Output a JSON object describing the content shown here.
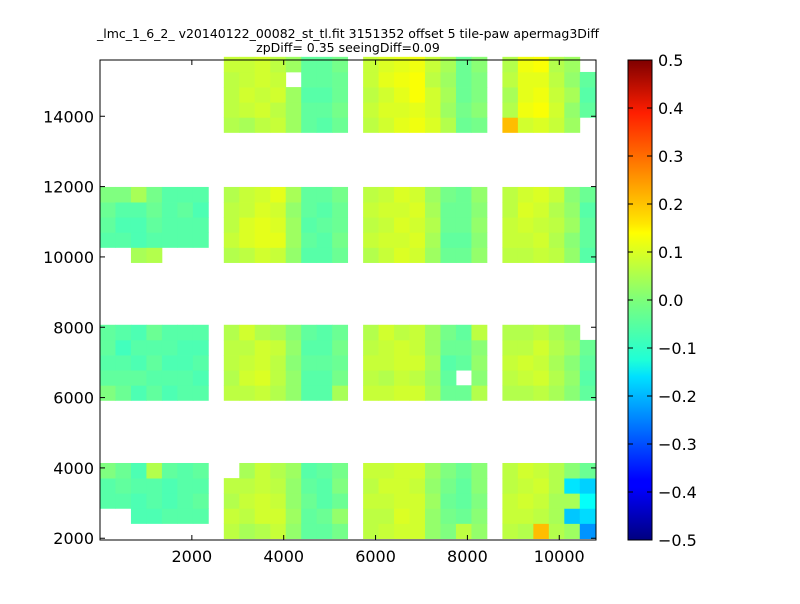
{
  "chart_data": {
    "type": "heatmap",
    "title_line1": "_lmc_1_6_2_ v20140122_00082_st_tl.fit 3151352 offset 5 tile-paw apermag3Diff",
    "title_line2": "zpDiff= 0.35 seeingDiff=0.09",
    "xlabel": "",
    "ylabel": "",
    "xlim": [
      0,
      10800
    ],
    "ylim": [
      1950,
      15600
    ],
    "x_ticks": [
      2000,
      4000,
      6000,
      8000,
      10000
    ],
    "x_tick_labels": [
      "2000",
      "4000",
      "6000",
      "8000",
      "10000"
    ],
    "y_ticks": [
      2000,
      4000,
      6000,
      8000,
      10000,
      12000,
      14000
    ],
    "y_tick_labels": [
      "2000",
      "4000",
      "6000",
      "8000",
      "10000",
      "12000",
      "14000"
    ],
    "colorbar": {
      "colormap": "jet",
      "vmin": -0.5,
      "vmax": 0.5,
      "ticks": [
        0.5,
        0.4,
        0.3,
        0.2,
        0.1,
        0.0,
        -0.1,
        -0.2,
        -0.3,
        -0.4,
        -0.5
      ],
      "tick_labels": [
        "0.5",
        "0.4",
        "0.3",
        "0.2",
        "0.1",
        "0.0",
        "−0.1",
        "−0.2",
        "−0.3",
        "−0.4",
        "−0.5"
      ]
    },
    "cell_size": {
      "dx": 337,
      "dy": 430
    },
    "column_x": [
      [
        0,
        337,
        674,
        1011,
        1348,
        1685,
        2022
      ],
      [
        2696,
        3033,
        3370,
        3707,
        4044,
        4381,
        4718,
        5055
      ],
      [
        5729,
        6066,
        6403,
        6740,
        7077,
        7414,
        7751,
        8088
      ],
      [
        8762,
        9099,
        9436,
        9773,
        10110,
        10447
      ]
    ],
    "row_y": [
      [
        1990,
        2420,
        2850,
        3280,
        3710
      ],
      [
        5920,
        6350,
        6780,
        7210,
        7640
      ],
      [
        9840,
        10270,
        10700,
        11130,
        11560
      ],
      [
        13540,
        13970,
        14400,
        14830,
        15260
      ]
    ],
    "cell_values": [
      [
        [
          [
            null,
            null,
            -0.04,
            -0.04,
            0.0
          ],
          [
            0.0,
            -0.03,
            -0.04,
            -0.03,
            -0.03
          ],
          [
            null,
            -0.04,
            -0.03,
            -0.02,
            0.0
          ]
        ],
        [
          [
            null,
            null,
            -0.04,
            -0.03,
            -0.02
          ],
          [
            -0.02,
            -0.03,
            -0.04,
            -0.06,
            -0.04
          ],
          [
            null,
            -0.04,
            -0.05,
            -0.04,
            0.0
          ]
        ],
        [
          [
            null,
            -0.05,
            -0.05,
            -0.04,
            -0.05
          ],
          [
            -0.05,
            -0.03,
            -0.05,
            -0.04,
            -0.05
          ],
          [
            0.04,
            -0.05,
            -0.05,
            -0.04,
            0.04
          ]
        ],
        [
          [
            null,
            -0.05,
            -0.04,
            -0.04,
            0.05
          ],
          [
            -0.03,
            -0.04,
            -0.03,
            -0.04,
            -0.02
          ],
          [
            0.05,
            -0.04,
            -0.03,
            -0.02,
            -0.01
          ]
        ],
        [
          [
            null,
            -0.04,
            -0.05,
            -0.05,
            -0.03
          ],
          [
            -0.05,
            -0.04,
            -0.05,
            -0.04,
            -0.04
          ],
          [
            null,
            -0.04,
            -0.04,
            -0.04,
            -0.04
          ]
        ],
        [
          [
            null,
            -0.04,
            -0.04,
            -0.04,
            -0.04
          ],
          [
            -0.04,
            -0.04,
            -0.05,
            -0.05,
            -0.04
          ],
          [
            null,
            -0.04,
            -0.04,
            -0.03,
            -0.04
          ]
        ],
        [
          [
            null,
            -0.04,
            -0.03,
            -0.04,
            -0.03
          ],
          [
            -0.04,
            -0.05,
            -0.04,
            -0.05,
            -0.04
          ],
          [
            null,
            -0.04,
            -0.04,
            -0.05,
            -0.04
          ]
        ]
      ],
      [
        [
          [
            0.06,
            0.07,
            0.05,
            0.06,
            null
          ],
          [
            0.06,
            0.05,
            0.06,
            0.06,
            0.05
          ],
          [
            0.05,
            0.07,
            0.06,
            0.06,
            0.05
          ],
          [
            0.05,
            0.06,
            0.06,
            0.06,
            0.07
          ]
        ],
        [
          [
            0.04,
            0.06,
            0.07,
            0.06,
            0.04
          ],
          [
            0.06,
            0.08,
            0.07,
            0.06,
            0.08
          ],
          [
            0.06,
            0.09,
            0.09,
            0.07,
            0.07
          ],
          [
            0.04,
            0.07,
            0.08,
            0.07,
            0.07
          ]
        ],
        [
          [
            0.05,
            0.08,
            0.08,
            0.07,
            0.07
          ],
          [
            0.07,
            0.09,
            0.08,
            0.08,
            0.05
          ],
          [
            0.08,
            0.1,
            0.1,
            0.09,
            0.08
          ],
          [
            0.06,
            0.08,
            0.07,
            0.08,
            0.08
          ]
        ],
        [
          [
            0.07,
            0.08,
            0.07,
            0.06,
            0.05
          ],
          [
            0.05,
            0.06,
            0.06,
            0.07,
            0.04
          ],
          [
            0.07,
            0.1,
            0.09,
            0.08,
            0.1
          ],
          [
            0.07,
            0.06,
            0.08,
            0.07,
            0.06
          ]
        ],
        [
          [
            0.02,
            0.03,
            0.02,
            0.02,
            0.03
          ],
          [
            0.02,
            0.02,
            0.01,
            0.02,
            0.01
          ],
          [
            0.02,
            0.03,
            0.03,
            0.02,
            0.04
          ],
          [
            0.03,
            0.03,
            0.03,
            null,
            0.03
          ]
        ],
        [
          [
            -0.03,
            -0.03,
            -0.02,
            -0.03,
            -0.04
          ],
          [
            -0.04,
            -0.04,
            -0.03,
            -0.04,
            -0.03
          ],
          [
            -0.04,
            -0.03,
            -0.04,
            -0.03,
            -0.03
          ],
          [
            -0.03,
            -0.03,
            -0.04,
            -0.03,
            -0.03
          ]
        ],
        [
          [
            -0.03,
            -0.02,
            -0.04,
            -0.04,
            -0.03
          ],
          [
            -0.04,
            -0.04,
            -0.03,
            -0.04,
            -0.04
          ],
          [
            -0.04,
            -0.04,
            -0.03,
            -0.04,
            -0.03
          ],
          [
            -0.04,
            -0.03,
            -0.04,
            -0.03,
            -0.03
          ]
        ],
        [
          [
            -0.01,
            0.02,
            -0.02,
            0.0,
            -0.01
          ],
          [
            0.04,
            -0.01,
            -0.02,
            -0.01,
            -0.02
          ],
          [
            -0.02,
            -0.01,
            -0.02,
            -0.02,
            -0.01
          ],
          [
            -0.02,
            -0.01,
            -0.02,
            -0.02,
            -0.01
          ]
        ]
      ],
      [
        [
          [
            0.06,
            0.06,
            0.07,
            0.06,
            0.07
          ],
          [
            0.07,
            0.06,
            0.07,
            0.06,
            0.05
          ],
          [
            0.05,
            0.07,
            0.06,
            0.07,
            0.06
          ],
          [
            0.06,
            0.07,
            0.06,
            0.07,
            0.07
          ]
        ],
        [
          [
            0.07,
            0.06,
            0.07,
            0.08,
            0.07
          ],
          [
            0.07,
            0.05,
            0.07,
            0.07,
            0.08
          ],
          [
            0.07,
            0.08,
            0.07,
            0.08,
            0.07
          ],
          [
            0.08,
            0.09,
            0.08,
            0.1,
            0.09
          ]
        ],
        [
          [
            0.08,
            0.09,
            0.08,
            0.08,
            0.08
          ],
          [
            0.08,
            0.07,
            0.08,
            0.08,
            0.06
          ],
          [
            0.09,
            0.08,
            0.09,
            0.08,
            0.09
          ],
          [
            0.1,
            0.09,
            0.1,
            0.11,
            0.1
          ]
        ],
        [
          [
            0.08,
            0.08,
            0.08,
            0.07,
            0.08
          ],
          [
            0.08,
            0.06,
            0.08,
            0.07,
            0.07
          ],
          [
            0.08,
            0.09,
            0.08,
            0.09,
            0.08
          ],
          [
            0.11,
            0.1,
            0.12,
            0.12,
            0.11
          ]
        ],
        [
          [
            0.02,
            0.02,
            0.03,
            0.02,
            0.03
          ],
          [
            0.04,
            0.03,
            0.04,
            0.03,
            0.03
          ],
          [
            0.03,
            0.04,
            0.05,
            0.04,
            0.03
          ],
          [
            0.09,
            0.08,
            0.08,
            0.06,
            0.07
          ]
        ],
        [
          [
            0.0,
            -0.01,
            -0.02,
            -0.01,
            0.0
          ],
          [
            -0.02,
            -0.03,
            -0.04,
            -0.02,
            -0.01
          ],
          [
            -0.02,
            -0.03,
            -0.02,
            -0.02,
            -0.01
          ],
          [
            0.05,
            0.03,
            0.04,
            0.03,
            0.04
          ]
        ],
        [
          [
            0.06,
            -0.02,
            -0.03,
            -0.03,
            -0.02
          ],
          [
            -0.02,
            null,
            -0.03,
            -0.02,
            -0.03
          ],
          [
            -0.02,
            -0.03,
            -0.02,
            -0.02,
            -0.02
          ],
          [
            -0.02,
            -0.01,
            -0.02,
            -0.02,
            -0.02
          ]
        ],
        [
          [
            0.02,
            0.01,
            0.0,
            0.01,
            0.01
          ],
          [
            0.05,
            0.01,
            0.02,
            0.01,
            0.06
          ],
          [
            0.02,
            0.01,
            0.02,
            0.01,
            0.02
          ],
          [
            -0.01,
            0.01,
            0.0,
            0.0,
            0.01
          ]
        ]
      ],
      [
        [
          [
            0.06,
            0.07,
            0.07,
            0.06,
            0.06
          ],
          [
            0.05,
            0.06,
            0.07,
            0.06,
            0.05
          ],
          [
            0.06,
            0.07,
            0.07,
            0.06,
            0.06
          ],
          [
            0.19,
            0.05,
            0.04,
            0.06,
            0.05
          ]
        ],
        [
          [
            0.05,
            0.07,
            0.08,
            0.07,
            0.08
          ],
          [
            0.05,
            0.07,
            0.08,
            0.06,
            0.05
          ],
          [
            0.06,
            0.07,
            0.08,
            0.09,
            0.08
          ],
          [
            0.08,
            0.11,
            0.1,
            0.1,
            0.11
          ]
        ],
        [
          [
            0.19,
            0.06,
            0.07,
            0.08,
            0.07
          ],
          [
            0.06,
            0.08,
            0.07,
            0.08,
            0.06
          ],
          [
            0.07,
            0.08,
            0.07,
            0.08,
            0.09
          ],
          [
            0.09,
            0.12,
            0.11,
            0.1,
            0.12
          ]
        ],
        [
          [
            0.05,
            0.04,
            0.04,
            0.05,
            0.05
          ],
          [
            0.04,
            0.05,
            0.04,
            0.05,
            0.04
          ],
          [
            0.06,
            0.05,
            0.06,
            0.05,
            0.07
          ],
          [
            0.07,
            0.08,
            0.07,
            0.06,
            0.05
          ]
        ],
        [
          [
            0.03,
            -0.18,
            0.04,
            -0.15,
            0.01
          ],
          [
            0.01,
            0.02,
            0.01,
            0.03,
            0.02
          ],
          [
            0.02,
            0.01,
            0.03,
            0.02,
            0.01
          ],
          [
            0.03,
            0.02,
            0.04,
            0.02,
            0.03
          ]
        ],
        [
          [
            -0.23,
            -0.16,
            -0.12,
            -0.17,
            -0.02
          ],
          [
            -0.03,
            -0.04,
            -0.03,
            -0.02,
            null
          ],
          [
            -0.04,
            -0.03,
            -0.03,
            -0.04,
            -0.02
          ],
          [
            null,
            -0.03,
            -0.04,
            -0.03,
            null
          ]
        ]
      ]
    ]
  }
}
